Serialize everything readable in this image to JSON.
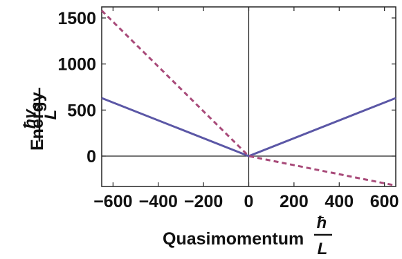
{
  "chart_data": {
    "type": "line",
    "xlabel": "Quasimomentum",
    "xunit": {
      "numerator": "ħ",
      "denominator": "L"
    },
    "ylabel": "Energy",
    "yunit": {
      "numerator": "ħv",
      "numerator_sub": "s",
      "denominator": "L"
    },
    "xlim": [
      -650,
      650
    ],
    "ylim": [
      -330,
      1620
    ],
    "xticks": [
      -600,
      -400,
      -200,
      0,
      200,
      400,
      600
    ],
    "xtick_labels": [
      "−600",
      "−400",
      "−200",
      "0",
      "200",
      "400",
      "600"
    ],
    "yticks": [
      0,
      500,
      1000,
      1500
    ],
    "ytick_labels": [
      "0",
      "500",
      "1000",
      "1500"
    ],
    "grid": false,
    "series": [
      {
        "style": "solid",
        "color": "#5b57a6",
        "x": [
          -650,
          0,
          650
        ],
        "y": [
          630,
          0,
          630
        ]
      },
      {
        "style": "dashed",
        "color": "#a84a79",
        "x": [
          -650,
          0,
          650
        ],
        "y": [
          1580,
          0,
          -320
        ]
      }
    ]
  }
}
